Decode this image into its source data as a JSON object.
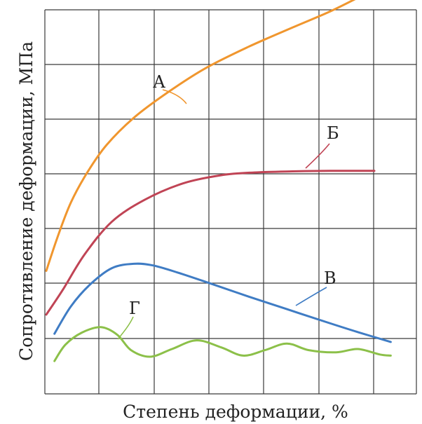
{
  "chart_data": {
    "type": "line",
    "xlabel": "Степень деформации, %",
    "ylabel": "Сопротивление деформации, МПа",
    "xlim": [
      0,
      6
    ],
    "ylim": [
      0,
      7
    ],
    "grid": true,
    "series": [
      {
        "name": "А",
        "color": "#f0962e",
        "points": [
          [
            0,
            2.25
          ],
          [
            0.2,
            2.85
          ],
          [
            0.45,
            3.5
          ],
          [
            0.75,
            4.05
          ],
          [
            1.1,
            4.55
          ],
          [
            1.6,
            5.05
          ],
          [
            2.2,
            5.5
          ],
          [
            2.9,
            5.95
          ],
          [
            3.7,
            6.35
          ],
          [
            4.5,
            6.7
          ],
          [
            5.2,
            7.0
          ],
          [
            5.9,
            7.35
          ]
        ]
      },
      {
        "name": "Б",
        "color": "#c04455",
        "points": [
          [
            0,
            1.45
          ],
          [
            0.3,
            1.9
          ],
          [
            0.7,
            2.55
          ],
          [
            1.2,
            3.15
          ],
          [
            1.8,
            3.55
          ],
          [
            2.5,
            3.85
          ],
          [
            3.2,
            4.0
          ],
          [
            3.8,
            4.05
          ],
          [
            4.5,
            4.07
          ],
          [
            5.2,
            4.08
          ],
          [
            6.0,
            4.08
          ]
        ]
      },
      {
        "name": "В",
        "color": "#3f7cc4",
        "points": [
          [
            0.15,
            1.1
          ],
          [
            0.45,
            1.6
          ],
          [
            0.8,
            2.0
          ],
          [
            1.2,
            2.3
          ],
          [
            1.6,
            2.38
          ],
          [
            1.95,
            2.35
          ],
          [
            2.4,
            2.22
          ],
          [
            3.0,
            2.02
          ],
          [
            3.7,
            1.78
          ],
          [
            4.4,
            1.55
          ],
          [
            5.1,
            1.32
          ],
          [
            5.7,
            1.13
          ],
          [
            6.3,
            0.95
          ]
        ]
      },
      {
        "name": "Г",
        "color": "#8cc049",
        "points": [
          [
            0.15,
            0.6
          ],
          [
            0.35,
            0.9
          ],
          [
            0.65,
            1.12
          ],
          [
            1.0,
            1.22
          ],
          [
            1.3,
            1.08
          ],
          [
            1.55,
            0.8
          ],
          [
            1.9,
            0.68
          ],
          [
            2.3,
            0.82
          ],
          [
            2.75,
            0.98
          ],
          [
            3.2,
            0.85
          ],
          [
            3.6,
            0.7
          ],
          [
            4.0,
            0.8
          ],
          [
            4.4,
            0.92
          ],
          [
            4.8,
            0.8
          ],
          [
            5.3,
            0.76
          ],
          [
            5.7,
            0.82
          ],
          [
            6.1,
            0.72
          ],
          [
            6.3,
            0.7
          ]
        ]
      }
    ],
    "annotations": [
      {
        "text": "А",
        "series": 0
      },
      {
        "text": "Б",
        "series": 1
      },
      {
        "text": "В",
        "series": 2
      },
      {
        "text": "Г",
        "series": 3
      }
    ]
  }
}
